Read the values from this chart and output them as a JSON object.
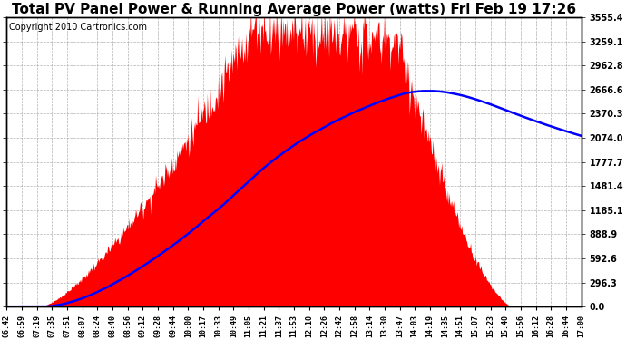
{
  "title": "Total PV Panel Power & Running Average Power (watts) Fri Feb 19 17:26",
  "copyright": "Copyright 2010 Cartronics.com",
  "yticks": [
    0.0,
    296.3,
    592.6,
    888.9,
    1185.1,
    1481.4,
    1777.7,
    2074.0,
    2370.3,
    2666.6,
    2962.8,
    3259.1,
    3555.4
  ],
  "ymax": 3555.4,
  "ymin": 0.0,
  "xtick_labels": [
    "06:42",
    "06:59",
    "07:19",
    "07:35",
    "07:51",
    "08:07",
    "08:24",
    "08:40",
    "08:56",
    "09:12",
    "09:28",
    "09:44",
    "10:00",
    "10:17",
    "10:33",
    "10:49",
    "11:05",
    "11:21",
    "11:37",
    "11:53",
    "12:10",
    "12:26",
    "12:42",
    "12:58",
    "13:14",
    "13:30",
    "13:47",
    "14:03",
    "14:19",
    "14:35",
    "14:51",
    "15:07",
    "15:23",
    "15:40",
    "15:56",
    "16:12",
    "16:28",
    "16:44",
    "17:00"
  ],
  "bg_color": "#ffffff",
  "fill_color": "#ff0000",
  "line_color": "#0000ff",
  "grid_color": "#b0b0b0",
  "title_fontsize": 11,
  "copyright_fontsize": 7,
  "tick_fontsize": 7,
  "xtick_fontsize": 6
}
